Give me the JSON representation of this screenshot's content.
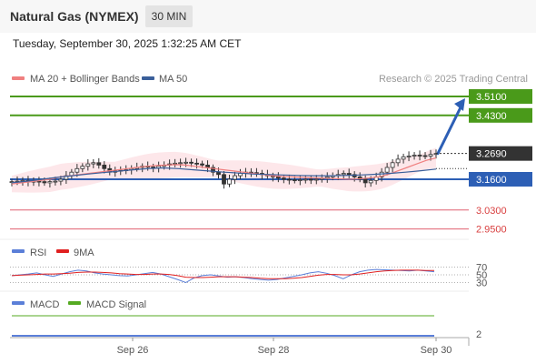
{
  "header": {
    "title": "Natural Gas (NYMEX)",
    "interval": "30 MIN",
    "datetime": "Tuesday, September 30, 2025 1:32:25 AM CET"
  },
  "legend": {
    "ma20_label": "MA 20 + Bollinger Bands",
    "ma50_label": "MA 50",
    "credit": "Research © 2025 Trading Central",
    "ma20_color": "#f08080",
    "ma50_color": "#3a5f9a"
  },
  "rsi_legend": {
    "rsi_label": "RSI",
    "ma9_label": "9MA",
    "rsi_color": "#5b7fd8",
    "ma9_color": "#e02020"
  },
  "macd_legend": {
    "macd_label": "MACD",
    "signal_label": "MACD Signal",
    "macd_color": "#5b7fd8",
    "signal_color": "#55aa22"
  },
  "chart_data": [
    {
      "type": "candlestick",
      "title": "",
      "x_ticks": [
        "Sep 26",
        "Sep 28",
        "Sep 30"
      ],
      "ylim": [
        2.9,
        3.6
      ],
      "current_price": 3.269,
      "current_price_label": "3.2690",
      "levels": [
        {
          "value": 3.51,
          "label": "3.5100",
          "kind": "resistance",
          "color": "#4a9a1a"
        },
        {
          "value": 3.43,
          "label": "3.4300",
          "kind": "resistance",
          "color": "#4a9a1a"
        },
        {
          "value": 3.16,
          "label": "3.1600",
          "kind": "pivot",
          "color": "#2d5fb5"
        },
        {
          "value": 3.03,
          "label": "3.0300",
          "kind": "support",
          "color": "#e06070"
        },
        {
          "value": 2.95,
          "label": "2.9500",
          "kind": "support",
          "color": "#e06070"
        }
      ],
      "close_series": [
        3.15,
        3.152,
        3.155,
        3.148,
        3.152,
        3.15,
        3.145,
        3.15,
        3.152,
        3.16,
        3.175,
        3.19,
        3.205,
        3.215,
        3.225,
        3.23,
        3.22,
        3.205,
        3.19,
        3.195,
        3.198,
        3.2,
        3.205,
        3.21,
        3.215,
        3.212,
        3.208,
        3.215,
        3.22,
        3.225,
        3.228,
        3.23,
        3.232,
        3.228,
        3.225,
        3.22,
        3.21,
        3.19,
        3.18,
        3.14,
        3.16,
        3.175,
        3.185,
        3.19,
        3.188,
        3.185,
        3.18,
        3.175,
        3.17,
        3.165,
        3.16,
        3.158,
        3.155,
        3.158,
        3.16,
        3.158,
        3.16,
        3.165,
        3.17,
        3.175,
        3.18,
        3.185,
        3.18,
        3.17,
        3.16,
        3.145,
        3.155,
        3.17,
        3.19,
        3.21,
        3.23,
        3.245,
        3.255,
        3.258,
        3.262,
        3.26,
        3.258,
        3.265,
        3.269
      ],
      "ma20_series": [
        3.14,
        3.145,
        3.15,
        3.155,
        3.16,
        3.17,
        3.175,
        3.18,
        3.185,
        3.19,
        3.195,
        3.2,
        3.205,
        3.21,
        3.215,
        3.218,
        3.22,
        3.222,
        3.22,
        3.215,
        3.21,
        3.205,
        3.2,
        3.195,
        3.19,
        3.185,
        3.18,
        3.175,
        3.172,
        3.17,
        3.168,
        3.166,
        3.165,
        3.163,
        3.162,
        3.16,
        3.162,
        3.165,
        3.17,
        3.18,
        3.195,
        3.21,
        3.225,
        3.24,
        3.25
      ],
      "ma50_series": [
        3.145,
        3.152,
        3.16,
        3.168,
        3.175,
        3.182,
        3.188,
        3.194,
        3.2,
        3.205,
        3.208,
        3.205,
        3.2,
        3.195,
        3.19,
        3.186,
        3.182,
        3.18,
        3.178,
        3.176,
        3.175,
        3.175,
        3.176,
        3.178,
        3.181,
        3.185,
        3.19,
        3.196,
        3.203
      ],
      "projection": {
        "from": 3.269,
        "to": 3.51
      }
    },
    {
      "type": "line",
      "title": "",
      "ylim": [
        20,
        80
      ],
      "y_ticks": [
        "70",
        "50",
        "30"
      ],
      "series": [
        {
          "name": "RSI",
          "values": [
            48,
            50,
            52,
            55,
            50,
            46,
            52,
            58,
            62,
            60,
            55,
            52,
            50,
            48,
            47,
            50,
            53,
            56,
            52,
            45,
            38,
            30,
            42,
            48,
            50,
            47,
            44,
            45,
            43,
            40,
            38,
            36,
            38,
            42,
            46,
            50,
            55,
            58,
            54,
            48,
            40,
            50,
            58,
            62,
            64,
            63,
            62,
            61,
            60,
            62,
            60,
            58
          ]
        },
        {
          "name": "9MA",
          "values": [
            48,
            49,
            50,
            51,
            52,
            52,
            53,
            54,
            56,
            57,
            57,
            56,
            55,
            53,
            52,
            51,
            51,
            52,
            52,
            51,
            48,
            44,
            43,
            43,
            44,
            45,
            45,
            45,
            44,
            43,
            41,
            40,
            40,
            40,
            41,
            43,
            46,
            49,
            51,
            51,
            50,
            50,
            52,
            55,
            58,
            60,
            61,
            62,
            62,
            62,
            61,
            61
          ]
        }
      ]
    },
    {
      "type": "line",
      "title": "",
      "y_ticks": [
        "2"
      ],
      "series": [
        {
          "name": "MACD",
          "values": [
            0.02,
            0.02,
            0.02,
            0.02,
            0.02,
            0.02,
            0.02,
            0.02,
            0.02,
            0.02
          ]
        },
        {
          "name": "MACD Signal",
          "values": [
            0.03,
            0.03,
            0.03,
            0.03,
            0.03,
            0.03,
            0.03,
            0.03,
            0.03,
            0.03
          ]
        }
      ]
    }
  ]
}
